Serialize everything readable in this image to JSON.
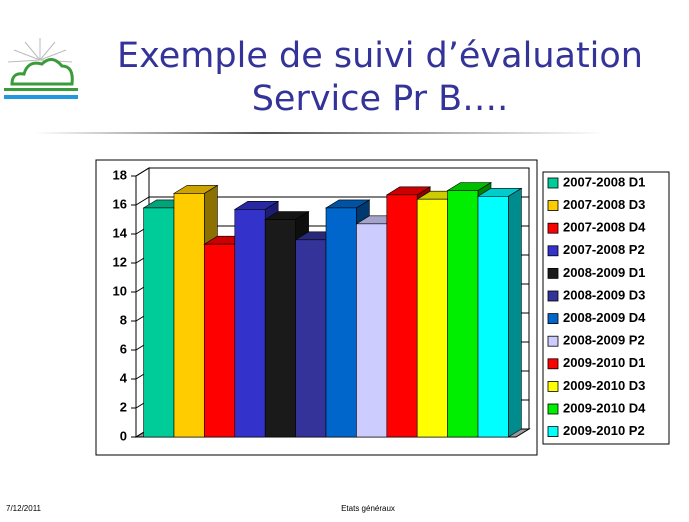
{
  "slide": {
    "title_lines": [
      "Exemple de suivi d’évaluation",
      "Service Pr B…."
    ],
    "footer_date": "7/12/2011",
    "footer_text": "Etats généraux"
  },
  "chart_data": {
    "type": "bar3d",
    "series": [
      {
        "name": "2007-2008 D1",
        "color": "#00cc99",
        "values": [
          15.8
        ]
      },
      {
        "name": "2007-2008 D3",
        "color": "#ffcc00",
        "values": [
          16.8
        ]
      },
      {
        "name": "2007-2008 D4",
        "color": "#ff0000",
        "values": [
          13.3
        ]
      },
      {
        "name": "2007-2008 P2",
        "color": "#3333cc",
        "values": [
          15.7
        ]
      },
      {
        "name": "2008-2009 D1",
        "color": "#1a1a1a",
        "values": [
          15.0
        ]
      },
      {
        "name": "2008-2009 D3",
        "color": "#333399",
        "values": [
          13.6
        ]
      },
      {
        "name": "2008-2009 D4",
        "color": "#0066cc",
        "values": [
          15.8
        ]
      },
      {
        "name": "2008-2009 P2",
        "color": "#ccccff",
        "values": [
          14.7
        ]
      },
      {
        "name": "2009-2010 D1",
        "color": "#ff0000",
        "values": [
          16.7
        ]
      },
      {
        "name": "2009-2010 D3",
        "color": "#ffff00",
        "values": [
          16.4
        ]
      },
      {
        "name": "2009-2010 D4",
        "color": "#00ee00",
        "values": [
          17.0
        ]
      },
      {
        "name": "2009-2010 P2",
        "color": "#00ffff",
        "values": [
          16.6
        ]
      }
    ],
    "ylim": [
      0,
      18
    ],
    "yticks": [
      0,
      2,
      4,
      6,
      8,
      10,
      12,
      14,
      16,
      18
    ],
    "grid": true,
    "legend": "right"
  }
}
